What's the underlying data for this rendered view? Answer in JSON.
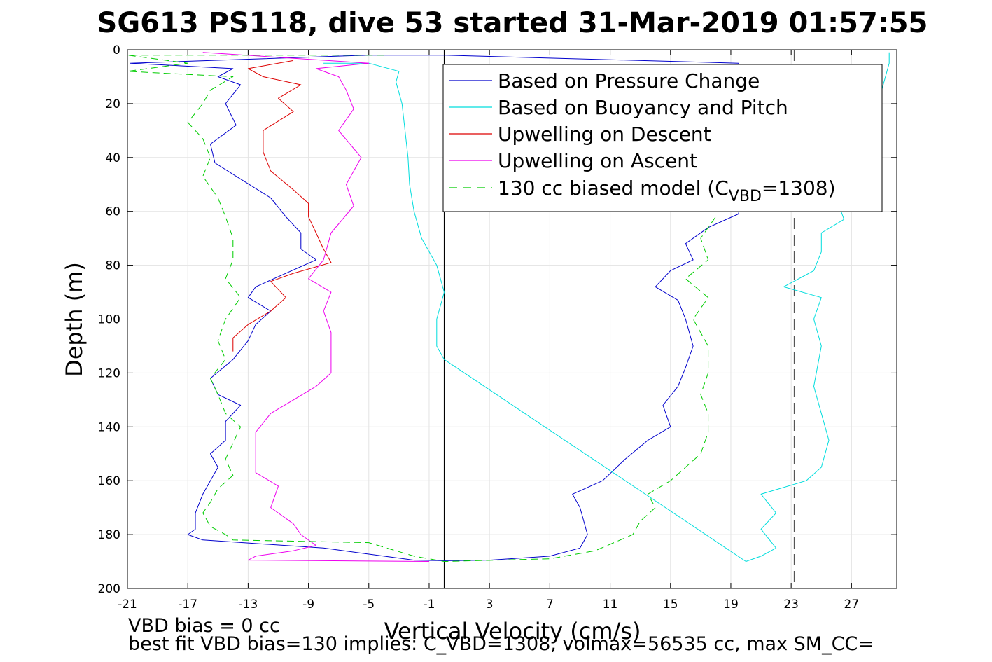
{
  "chart_data": {
    "type": "line",
    "title": "SG613 PS118, dive 53 started 31-Mar-2019 01:57:55",
    "xlabel": "Vertical Velocity (cm/s)",
    "ylabel": "Depth (m)",
    "xlim": [
      -21,
      30
    ],
    "ylim": [
      0,
      200
    ],
    "y_reversed": true,
    "grid": true,
    "legend_placement": "top-right",
    "xticks": [
      -21,
      -17,
      -13,
      -9,
      -5,
      -1,
      3,
      7,
      11,
      15,
      19,
      23,
      27
    ],
    "yticks": [
      0,
      20,
      40,
      60,
      80,
      100,
      120,
      140,
      160,
      180,
      200
    ],
    "reference_lines": [
      {
        "orientation": "vertical",
        "x": 0,
        "style": "solid",
        "color": "#000000"
      },
      {
        "orientation": "vertical",
        "x": 23.2,
        "style": "dashed",
        "color": "#555555"
      }
    ],
    "series": [
      {
        "name": "Based on Pressure Change",
        "color": "#0000cc",
        "style": "solid",
        "points": [
          [
            1,
            2
          ],
          [
            -5,
            2
          ],
          [
            -20.8,
            5
          ],
          [
            -14,
            7
          ],
          [
            -15,
            10
          ],
          [
            -13.5,
            13
          ],
          [
            -14.5,
            20
          ],
          [
            -13.8,
            28
          ],
          [
            -15.5,
            35
          ],
          [
            -15.2,
            42
          ],
          [
            -13.5,
            48
          ],
          [
            -11.5,
            55
          ],
          [
            -10.5,
            62
          ],
          [
            -9.5,
            68
          ],
          [
            -9.5,
            74
          ],
          [
            -8.5,
            78
          ],
          [
            -10.5,
            83
          ],
          [
            -12.5,
            88
          ],
          [
            -13,
            92
          ],
          [
            -11.5,
            97
          ],
          [
            -12.5,
            102
          ],
          [
            -13,
            108
          ],
          [
            -14,
            115
          ],
          [
            -15.5,
            122
          ],
          [
            -15,
            128
          ],
          [
            -13.5,
            132
          ],
          [
            -14.5,
            138
          ],
          [
            -14.5,
            145
          ],
          [
            -15.5,
            150
          ],
          [
            -15,
            155
          ],
          [
            -15.5,
            160
          ],
          [
            -16,
            165
          ],
          [
            -16.5,
            172
          ],
          [
            -16.5,
            178
          ],
          [
            -17,
            180
          ],
          [
            -16,
            182
          ],
          [
            -8,
            185
          ],
          [
            -4,
            188
          ],
          [
            -2,
            189.5
          ],
          [
            0,
            189.7
          ],
          [
            3,
            189.5
          ],
          [
            7,
            188
          ],
          [
            9,
            185
          ],
          [
            9.5,
            180
          ],
          [
            9,
            170
          ],
          [
            8.5,
            165
          ],
          [
            10.5,
            160
          ],
          [
            12,
            152
          ],
          [
            13.5,
            145
          ],
          [
            15,
            140
          ],
          [
            14.5,
            132
          ],
          [
            15.5,
            125
          ],
          [
            16,
            118
          ],
          [
            16.5,
            110
          ],
          [
            16,
            100
          ],
          [
            15.5,
            93
          ],
          [
            14,
            88
          ],
          [
            15,
            82
          ],
          [
            16.5,
            78
          ],
          [
            16,
            72
          ],
          [
            17.5,
            66
          ],
          [
            19.5,
            61
          ],
          [
            20,
            50
          ],
          [
            20.5,
            35
          ],
          [
            20.5,
            20
          ],
          [
            19.5,
            5
          ],
          [
            0,
            2
          ]
        ]
      },
      {
        "name": "Based on Buoyancy and Pitch",
        "color": "#00dddd",
        "style": "solid",
        "points": [
          [
            -8,
            5
          ],
          [
            -5,
            5
          ],
          [
            -3,
            8
          ],
          [
            -3.2,
            12
          ],
          [
            -2.8,
            20
          ],
          [
            -2.6,
            30
          ],
          [
            -2.4,
            40
          ],
          [
            -2.3,
            50
          ],
          [
            -2,
            60
          ],
          [
            -1.5,
            70
          ],
          [
            -0.5,
            80
          ],
          [
            0,
            90
          ],
          [
            -0.5,
            100
          ],
          [
            -0.5,
            110
          ],
          [
            0,
            115
          ],
          [
            20,
            190
          ],
          [
            21,
            188
          ],
          [
            22,
            185
          ],
          [
            21,
            178
          ],
          [
            22,
            172
          ],
          [
            21,
            165
          ],
          [
            24,
            160
          ],
          [
            25,
            155
          ],
          [
            25.5,
            145
          ],
          [
            25,
            135
          ],
          [
            24.5,
            125
          ],
          [
            25,
            110
          ],
          [
            24.5,
            100
          ],
          [
            25,
            92
          ],
          [
            22.5,
            88
          ],
          [
            24.5,
            82
          ],
          [
            25,
            75
          ],
          [
            25,
            68
          ],
          [
            26.5,
            63
          ],
          [
            26,
            55
          ],
          [
            27,
            45
          ],
          [
            28,
            35
          ],
          [
            28.5,
            25
          ],
          [
            29,
            15
          ],
          [
            29.5,
            5
          ],
          [
            29.5,
            1
          ]
        ]
      },
      {
        "name": "Upwelling on Descent",
        "color": "#dd0000",
        "style": "solid",
        "points": [
          [
            -10,
            4
          ],
          [
            -13,
            7
          ],
          [
            -12,
            10
          ],
          [
            -9.5,
            13
          ],
          [
            -11,
            18
          ],
          [
            -10,
            23
          ],
          [
            -12,
            30
          ],
          [
            -12,
            38
          ],
          [
            -11.5,
            45
          ],
          [
            -10,
            52
          ],
          [
            -9,
            57
          ],
          [
            -9,
            62
          ],
          [
            -8.5,
            68
          ],
          [
            -8,
            74
          ],
          [
            -7.5,
            79
          ],
          [
            -10,
            83
          ],
          [
            -11.5,
            86
          ],
          [
            -10.5,
            92
          ],
          [
            -11.5,
            97
          ],
          [
            -13,
            102
          ],
          [
            -14,
            107
          ],
          [
            -14,
            112
          ]
        ]
      },
      {
        "name": "Upwelling on Ascent",
        "color": "#ee00ee",
        "style": "solid",
        "points": [
          [
            -16,
            1
          ],
          [
            -5,
            5
          ],
          [
            -8.5,
            7
          ],
          [
            -7,
            10
          ],
          [
            -6.5,
            15
          ],
          [
            -6,
            22
          ],
          [
            -7,
            30
          ],
          [
            -5.5,
            40
          ],
          [
            -6.5,
            50
          ],
          [
            -6,
            58
          ],
          [
            -7.5,
            68
          ],
          [
            -8,
            78
          ],
          [
            -9,
            85
          ],
          [
            -7.5,
            90
          ],
          [
            -8,
            97
          ],
          [
            -7.5,
            105
          ],
          [
            -7.5,
            112
          ],
          [
            -7.5,
            120
          ],
          [
            -8.5,
            125
          ],
          [
            -10,
            130
          ],
          [
            -11.5,
            135
          ],
          [
            -12.5,
            142
          ],
          [
            -12.5,
            150
          ],
          [
            -12.5,
            157
          ],
          [
            -11,
            162
          ],
          [
            -11.5,
            170
          ],
          [
            -10,
            176
          ],
          [
            -9.5,
            180
          ],
          [
            -8.5,
            184
          ],
          [
            -10,
            186
          ],
          [
            -12.5,
            188
          ],
          [
            -13,
            189.5
          ],
          [
            -1,
            190
          ]
        ]
      },
      {
        "name": "130 cc biased model (C_VBD=1308)",
        "color": "#00cc00",
        "style": "dashed",
        "points": [
          [
            -4,
            2
          ],
          [
            -21,
            2
          ],
          [
            -17,
            5
          ],
          [
            -21,
            8
          ],
          [
            -14,
            10
          ],
          [
            -15.5,
            15
          ],
          [
            -16,
            20
          ],
          [
            -17,
            27
          ],
          [
            -16,
            33
          ],
          [
            -15.5,
            40
          ],
          [
            -16,
            47
          ],
          [
            -15,
            55
          ],
          [
            -14.5,
            62
          ],
          [
            -14,
            70
          ],
          [
            -14,
            78
          ],
          [
            -14.5,
            85
          ],
          [
            -13.5,
            92
          ],
          [
            -14.5,
            100
          ],
          [
            -15,
            108
          ],
          [
            -14.5,
            115
          ],
          [
            -15.5,
            122
          ],
          [
            -15,
            128
          ],
          [
            -14.5,
            135
          ],
          [
            -13.5,
            140
          ],
          [
            -14,
            146
          ],
          [
            -14.5,
            152
          ],
          [
            -14,
            158
          ],
          [
            -15,
            163
          ],
          [
            -15.5,
            168
          ],
          [
            -16,
            172
          ],
          [
            -15.5,
            177
          ],
          [
            -14.5,
            180
          ],
          [
            -14,
            182
          ],
          [
            -5,
            183
          ],
          [
            -2,
            188
          ],
          [
            0,
            190
          ],
          [
            7,
            189
          ],
          [
            10,
            186
          ],
          [
            12.5,
            180
          ],
          [
            13,
            175
          ],
          [
            14,
            170
          ],
          [
            13.5,
            165
          ],
          [
            15,
            160
          ],
          [
            16,
            155
          ],
          [
            17,
            150
          ],
          [
            17.5,
            142
          ],
          [
            17.5,
            135
          ],
          [
            17,
            128
          ],
          [
            17.5,
            120
          ],
          [
            17.5,
            110
          ],
          [
            16.5,
            100
          ],
          [
            17.5,
            92
          ],
          [
            16,
            85
          ],
          [
            17.5,
            78
          ],
          [
            17,
            70
          ],
          [
            18,
            62
          ]
        ]
      }
    ]
  },
  "legend_labels": {
    "pressure": "Based on Pressure Change",
    "buoyancy": "Based on Buoyancy and Pitch",
    "descent": "Upwelling on Descent",
    "ascent": "Upwelling on Ascent",
    "model_prefix": "130 cc biased model (C",
    "model_sub": "VBD",
    "model_suffix": "=1308)"
  },
  "footer": {
    "line1": "VBD bias = 0 cc",
    "line2": "best fit VBD bias=130 implies: C_VBD=1308, volmax=56535 cc, max SM_CC="
  }
}
